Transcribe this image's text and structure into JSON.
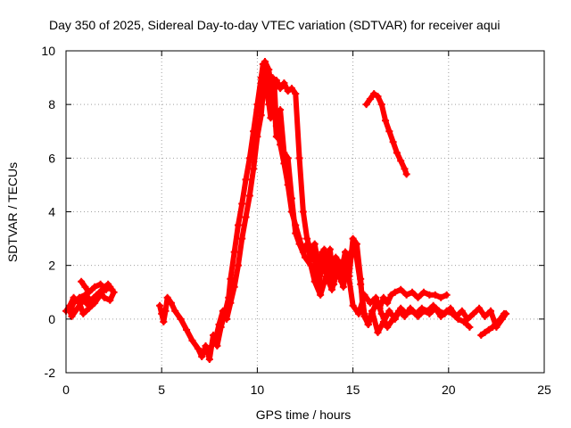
{
  "chart_data": {
    "type": "scatter",
    "title": "Day 350 of 2025, Sidereal Day-to-day VTEC variation (SDTVAR) for receiver aqui",
    "xlabel": "GPS time / hours",
    "ylabel": "SDTVAR / TECUs",
    "xlim": [
      0,
      25
    ],
    "ylim": [
      -2,
      10
    ],
    "xticks": [
      "0",
      "5",
      "10",
      "15",
      "20",
      "25"
    ],
    "yticks": [
      "-2",
      "0",
      "2",
      "4",
      "6",
      "8",
      "10"
    ],
    "grid": true,
    "marker": "plus",
    "series_color": "#ff0000",
    "series": [
      {
        "name": "satellite-track-1",
        "x": [
          0.0,
          0.2,
          0.4,
          0.7,
          0.9,
          1.2,
          1.5,
          1.8,
          2.1,
          2.4,
          2.2,
          1.9,
          1.6,
          1.3,
          1.0,
          0.7,
          0.4,
          0.2,
          0.3,
          0.6,
          0.9,
          1.2,
          1.5,
          1.8,
          2.0,
          2.3,
          2.5,
          2.3,
          2.1,
          1.8,
          1.5,
          1.2,
          1.0,
          0.8
        ],
        "y": [
          0.3,
          0.5,
          0.8,
          0.6,
          0.2,
          0.4,
          0.6,
          0.9,
          1.2,
          1.1,
          1.3,
          1.1,
          0.9,
          0.7,
          0.9,
          0.8,
          0.6,
          0.3,
          0.1,
          0.4,
          0.7,
          0.5,
          0.8,
          1.0,
          0.8,
          0.7,
          1.0,
          1.2,
          1.1,
          1.3,
          1.2,
          1.0,
          1.2,
          1.4
        ]
      },
      {
        "name": "satellite-track-2",
        "x": [
          4.9,
          5.0,
          5.1,
          5.2,
          5.3,
          5.5,
          5.7,
          6.0,
          6.3,
          6.6,
          6.9,
          7.1,
          7.3,
          7.5,
          7.7,
          7.9,
          8.1,
          8.3,
          8.5,
          8.6,
          8.8,
          9.0,
          9.2,
          9.4,
          9.6,
          9.8,
          10.0,
          10.2,
          10.3,
          10.5,
          10.7,
          10.9,
          11.0,
          11.2,
          11.4,
          11.6,
          11.8,
          12.0,
          12.2,
          12.4,
          12.6,
          12.8,
          13.0,
          13.2,
          13.4,
          13.6,
          13.8,
          14.0,
          14.2,
          14.4,
          14.6,
          14.8,
          15.0,
          15.2,
          15.4,
          15.5,
          15.6,
          15.8,
          16.0,
          16.2,
          16.4,
          16.6,
          16.8,
          17.0,
          17.2,
          17.5,
          17.8,
          18.1,
          18.4,
          18.7,
          19.0,
          19.3,
          19.6,
          19.9
        ],
        "y": [
          0.5,
          0.2,
          -0.1,
          0.3,
          0.8,
          0.6,
          0.3,
          0.0,
          -0.4,
          -0.8,
          -1.1,
          -1.4,
          -1.0,
          -1.5,
          -0.6,
          -1.0,
          -0.3,
          0.2,
          0.8,
          1.5,
          2.5,
          3.5,
          4.3,
          5.2,
          6.0,
          7.0,
          8.0,
          9.0,
          9.5,
          8.6,
          7.5,
          8.6,
          7.2,
          6.5,
          5.8,
          5.0,
          4.0,
          3.5,
          3.0,
          2.5,
          2.8,
          2.2,
          2.8,
          2.0,
          2.5,
          1.7,
          2.6,
          1.3,
          2.2,
          1.8,
          2.5,
          1.6,
          3.0,
          2.8,
          1.5,
          0.5,
          0.1,
          -0.2,
          0.2,
          0.6,
          0.4,
          0.8,
          0.6,
          0.9,
          1.0,
          1.1,
          0.9,
          1.0,
          0.8,
          1.0,
          0.9,
          0.9,
          0.8,
          0.9
        ]
      },
      {
        "name": "satellite-track-3",
        "x": [
          7.8,
          8.0,
          8.2,
          8.4,
          8.6,
          8.8,
          9.0,
          9.2,
          9.4,
          9.6,
          9.8,
          10.0,
          10.2,
          10.4,
          10.6,
          10.8,
          11.0,
          11.2,
          11.4,
          11.6,
          11.8,
          12.0,
          12.2,
          12.5,
          12.8,
          13.0,
          13.3,
          13.6,
          13.9,
          14.2,
          14.5,
          14.8,
          15.1,
          15.4,
          15.6,
          15.8,
          16.0,
          16.3,
          16.6,
          16.9,
          17.2,
          17.5,
          17.8,
          18.1,
          18.4,
          18.7,
          19.0,
          19.3,
          19.6,
          19.9,
          20.2,
          20.5,
          20.8,
          21.1
        ],
        "y": [
          -0.8,
          -0.2,
          0.3,
          0.0,
          0.6,
          1.2,
          2.0,
          3.0,
          3.8,
          4.6,
          5.6,
          6.8,
          7.6,
          9.2,
          8.0,
          9.0,
          6.8,
          7.8,
          6.2,
          6.0,
          4.5,
          3.2,
          2.8,
          2.3,
          2.0,
          1.4,
          0.9,
          1.6,
          1.1,
          1.8,
          1.2,
          2.4,
          2.7,
          1.3,
          0.2,
          -0.2,
          0.3,
          -0.5,
          -0.1,
          0.3,
          0.0,
          0.4,
          0.2,
          0.3,
          0.1,
          0.3,
          0.2,
          0.4,
          0.1,
          0.3,
          0.2,
          0.0,
          -0.1,
          -0.3
        ]
      },
      {
        "name": "satellite-track-4",
        "x": [
          10.0,
          10.2,
          10.4,
          10.6,
          10.8,
          11.0,
          11.2,
          11.4,
          11.6,
          11.8,
          12.0,
          12.2,
          12.4,
          12.6,
          12.8,
          13.0,
          13.2,
          13.5,
          13.8,
          14.1,
          14.4,
          14.7,
          15.0,
          15.3,
          15.6,
          15.9,
          16.2,
          16.5,
          16.8,
          17.1,
          17.4,
          17.7,
          18.0,
          18.3,
          18.6,
          18.9,
          19.2,
          19.5,
          19.8,
          20.1,
          20.4,
          20.7,
          21.0,
          21.3,
          21.6,
          21.9,
          22.2,
          22.5,
          22.8,
          23.0
        ],
        "y": [
          7.8,
          8.8,
          9.6,
          9.3,
          8.2,
          8.9,
          8.6,
          8.8,
          8.5,
          8.6,
          8.4,
          6.0,
          4.0,
          3.0,
          2.5,
          2.2,
          1.2,
          2.6,
          1.5,
          2.3,
          1.4,
          2.0,
          0.5,
          0.2,
          0.9,
          0.6,
          0.8,
          0.2,
          -0.3,
          0.0,
          0.3,
          0.1,
          0.4,
          0.2,
          0.4,
          0.3,
          0.5,
          0.3,
          0.2,
          0.4,
          0.1,
          0.3,
          0.0,
          0.2,
          0.4,
          0.1,
          0.3,
          -0.3,
          0.0,
          0.2
        ]
      },
      {
        "name": "satellite-track-5",
        "x": [
          15.7,
          15.9,
          16.1,
          16.3,
          16.5,
          16.7,
          16.9,
          17.1,
          17.3,
          17.5,
          17.7,
          17.8
        ],
        "y": [
          8.0,
          8.2,
          8.4,
          8.3,
          8.0,
          7.4,
          7.0,
          6.6,
          6.2,
          5.9,
          5.6,
          5.4
        ]
      },
      {
        "name": "satellite-track-6",
        "x": [
          21.7,
          21.9,
          22.1,
          22.3,
          22.5,
          22.7,
          22.9
        ],
        "y": [
          -0.6,
          -0.5,
          -0.4,
          -0.3,
          -0.2,
          0.0,
          0.2
        ]
      }
    ]
  }
}
